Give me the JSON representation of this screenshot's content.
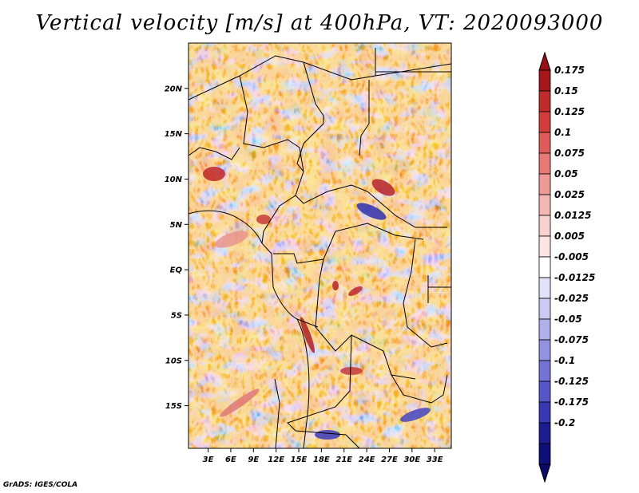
{
  "chart_data": {
    "type": "heatmap",
    "title": "Vertical velocity [m/s] at 400hPa, VT: 2020093000",
    "xlabel": "",
    "ylabel": "",
    "x_tick_labels": [
      "3E",
      "6E",
      "9E",
      "12E",
      "15E",
      "18E",
      "21E",
      "24E",
      "27E",
      "30E",
      "33E"
    ],
    "x_tick_values": [
      3,
      6,
      9,
      12,
      15,
      18,
      21,
      24,
      27,
      30,
      33
    ],
    "y_tick_labels": [
      "20N",
      "15N",
      "10N",
      "5N",
      "EQ",
      "5S",
      "10S",
      "15S"
    ],
    "y_tick_values": [
      20,
      15,
      10,
      5,
      0,
      -5,
      -10,
      -15
    ],
    "xlim": [
      0.4,
      35.2
    ],
    "ylim": [
      -19.7,
      25
    ],
    "colorbar": {
      "labels": [
        "0.175",
        "0.15",
        "0.125",
        "0.1",
        "0.075",
        "0.05",
        "0.025",
        "0.0125",
        "0.005",
        "-0.005",
        "-0.0125",
        "-0.025",
        "-0.05",
        "-0.075",
        "-0.1",
        "-0.125",
        "-0.175",
        "-0.2"
      ],
      "colors": [
        "#a6161b",
        "#bf2a2a",
        "#d23c3c",
        "#df5a58",
        "#e77a76",
        "#ef9a96",
        "#f4b7b3",
        "#f8d2cf",
        "#fbe6e4",
        "#ffffff",
        "#e2e2f8",
        "#cacaf2",
        "#b0b0ec",
        "#9292e2",
        "#7474d6",
        "#5656c8",
        "#3838b2",
        "#1d1d92",
        "#0f0f7a"
      ],
      "top_arrow_color": "#961014",
      "bottom_arrow_color": "#0a0a6a"
    },
    "field_description": "mixed red/blue small-scale vertical velocity field over Central Africa"
  },
  "credit": "GrADS: IGES/COLA"
}
